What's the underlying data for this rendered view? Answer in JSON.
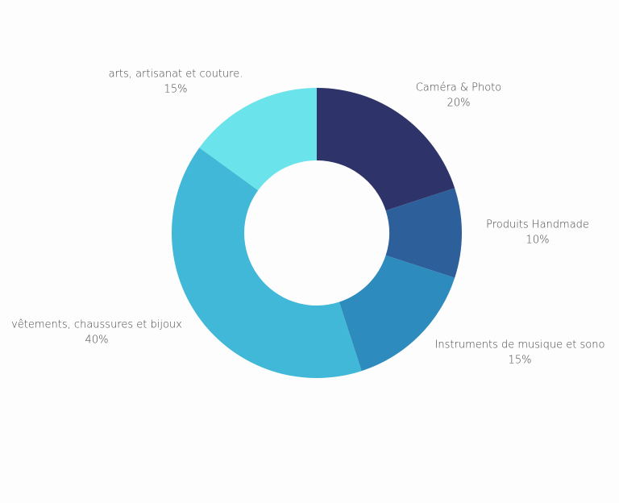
{
  "chart_data": {
    "type": "donut",
    "categories": [
      "Caméra & Photo",
      "Produits Handmade",
      "Instruments de musique et sono",
      "vêtements, chaussures et bijoux",
      "arts, artisanat et couture."
    ],
    "values": [
      20,
      10,
      15,
      40,
      15
    ],
    "value_labels": [
      "20%",
      "10%",
      "15%",
      "40%",
      "15%"
    ],
    "colors": [
      "#2e3369",
      "#2d5f9a",
      "#2e8bbd",
      "#42b8d8",
      "#6ae4ea"
    ]
  }
}
